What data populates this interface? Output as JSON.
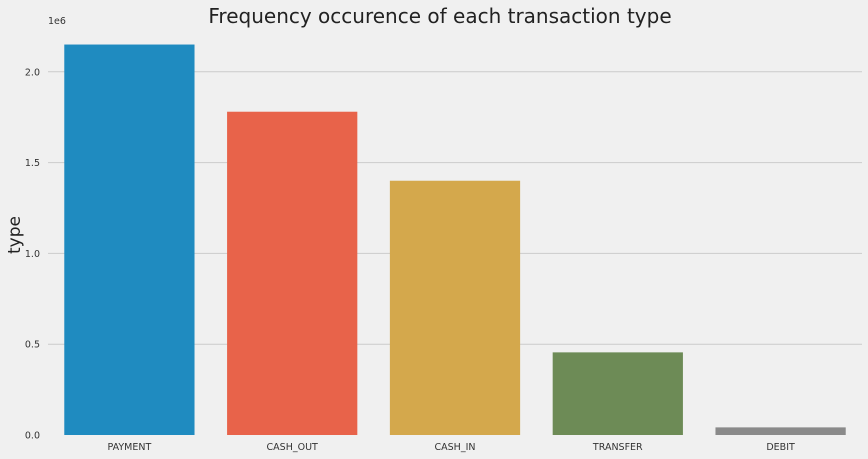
{
  "chart_data": {
    "type": "bar",
    "title": "Frequency occurence of each transaction type",
    "xlabel": "",
    "ylabel": "type",
    "scale_label": "1e6",
    "categories": [
      "PAYMENT",
      "CASH_OUT",
      "CASH_IN",
      "TRANSFER",
      "DEBIT"
    ],
    "values": [
      2150000,
      1780000,
      1400000,
      455000,
      42000
    ],
    "colors": [
      "#1f8bc0",
      "#e8634a",
      "#d4a84c",
      "#6d8b56",
      "#8a8a8a"
    ],
    "ylim": [
      0,
      2230000
    ],
    "yticks": [
      0,
      500000,
      1000000,
      1500000,
      2000000
    ],
    "ytick_labels": [
      "0.0",
      "0.5",
      "1.0",
      "1.5",
      "2.0"
    ],
    "grid": "horizontal",
    "background": "#f0f0f0",
    "grid_color": "#cbcbcb"
  }
}
